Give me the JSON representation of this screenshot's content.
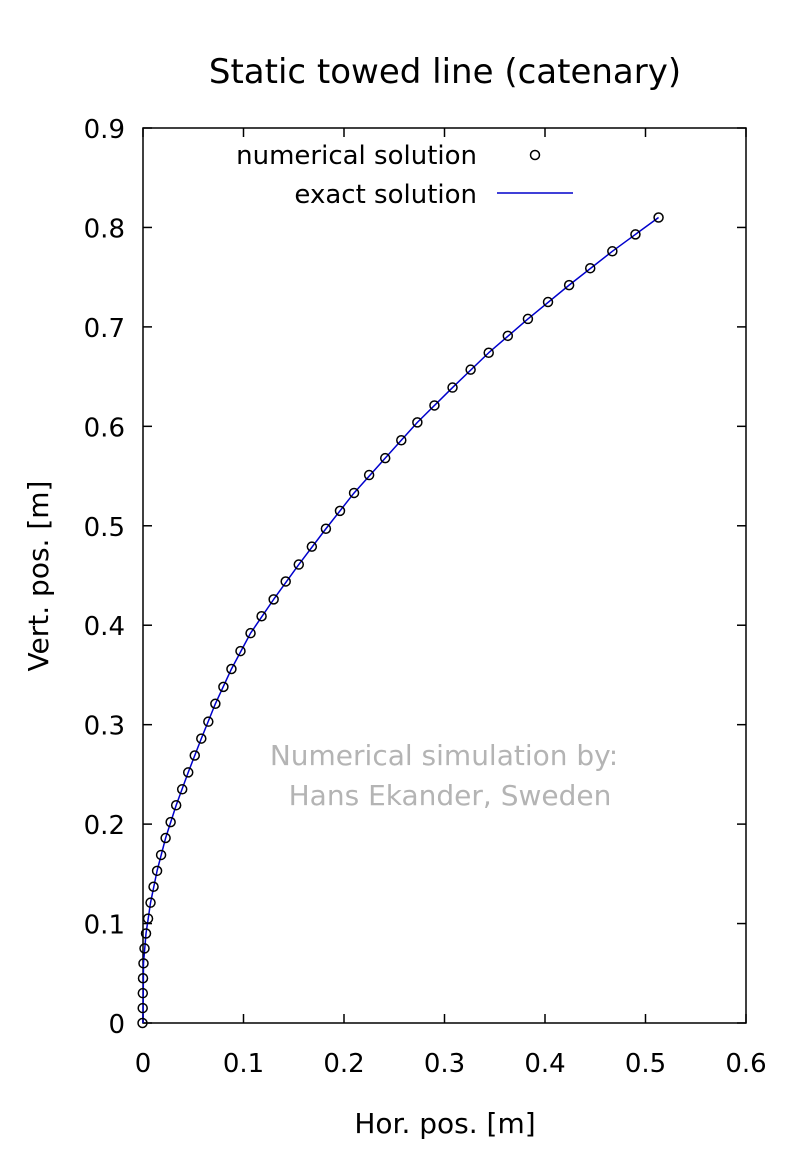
{
  "chart_data": {
    "type": "line",
    "title": "Static towed line (catenary)",
    "xlabel": "Hor. pos. [m]",
    "ylabel": "Vert. pos. [m]",
    "xlim": [
      0,
      0.6
    ],
    "ylim": [
      0,
      0.9
    ],
    "xticks": [
      "0",
      "0.1",
      "0.2",
      "0.3",
      "0.4",
      "0.5",
      "0.6"
    ],
    "yticks": [
      "0",
      "0.1",
      "0.2",
      "0.3",
      "0.4",
      "0.5",
      "0.6",
      "0.7",
      "0.8",
      "0.9"
    ],
    "grid": false,
    "legend_position": "top-right",
    "series": [
      {
        "name": "numerical solution",
        "style": "markers",
        "marker": "open-circle",
        "color": "#000000",
        "x": [
          -0.0005,
          -0.0003,
          -0.0002,
          0.0,
          0.0005,
          0.0015,
          0.003,
          0.005,
          0.0075,
          0.0105,
          0.014,
          0.018,
          0.0225,
          0.0275,
          0.033,
          0.039,
          0.045,
          0.0515,
          0.058,
          0.065,
          0.072,
          0.08,
          0.088,
          0.097,
          0.107,
          0.118,
          0.13,
          0.142,
          0.155,
          0.168,
          0.182,
          0.196,
          0.21,
          0.225,
          0.241,
          0.257,
          0.273,
          0.29,
          0.308,
          0.326,
          0.344,
          0.363,
          0.383,
          0.403,
          0.424,
          0.445,
          0.467,
          0.49,
          0.513
        ],
        "y": [
          0.0,
          0.015,
          0.03,
          0.045,
          0.06,
          0.075,
          0.09,
          0.105,
          0.121,
          0.137,
          0.153,
          0.169,
          0.186,
          0.202,
          0.219,
          0.235,
          0.252,
          0.269,
          0.286,
          0.303,
          0.321,
          0.338,
          0.356,
          0.374,
          0.392,
          0.409,
          0.426,
          0.444,
          0.461,
          0.479,
          0.497,
          0.515,
          0.533,
          0.551,
          0.568,
          0.586,
          0.604,
          0.621,
          0.639,
          0.657,
          0.674,
          0.691,
          0.708,
          0.725,
          0.742,
          0.759,
          0.776,
          0.793,
          0.81
        ]
      },
      {
        "name": "exact solution",
        "style": "line",
        "color": "#0000cc",
        "x": [
          0.0,
          0.0005,
          0.003,
          0.0075,
          0.014,
          0.0225,
          0.033,
          0.045,
          0.058,
          0.072,
          0.088,
          0.107,
          0.13,
          0.155,
          0.182,
          0.21,
          0.241,
          0.273,
          0.308,
          0.344,
          0.383,
          0.424,
          0.467,
          0.513
        ],
        "y": [
          0.0,
          0.06,
          0.09,
          0.121,
          0.153,
          0.186,
          0.219,
          0.252,
          0.286,
          0.321,
          0.356,
          0.392,
          0.426,
          0.461,
          0.497,
          0.533,
          0.568,
          0.604,
          0.639,
          0.674,
          0.708,
          0.742,
          0.776,
          0.81
        ]
      }
    ],
    "annotation": [
      "Numerical simulation by:",
      "Hans Ekander, Sweden"
    ]
  },
  "colors": {
    "marker": "#000000",
    "line": "#0000cc",
    "watermark": "#b4b4b4",
    "axes": "#000000"
  }
}
